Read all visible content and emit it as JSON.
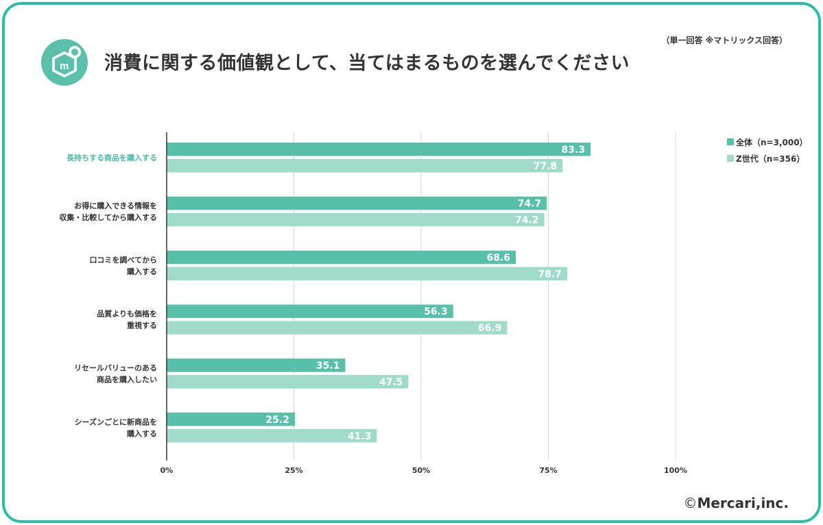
{
  "title": "消費に関する価値観として、当てはまるものを選んでください",
  "note": "（単一回答 ※マトリックス回答）",
  "copyright": "Mercari,inc.",
  "logo_icon": "mercari-logo-icon",
  "colors": {
    "frame": "#29bda6",
    "series1": "#58bfa8",
    "series2": "#9fdaca",
    "highlight_label": "#4cb9a1",
    "logo_bg": "#5bc0a9"
  },
  "chart_data": {
    "type": "bar",
    "orientation": "horizontal",
    "categories": [
      [
        "長持ちする商品を購入する"
      ],
      [
        "お得に購入できる情報を",
        "収集・比較してから購入する"
      ],
      [
        "口コミを調べてから",
        "購入する"
      ],
      [
        "品質よりも価格を",
        "重視する"
      ],
      [
        "リセールバリューのある",
        "商品を購入したい"
      ],
      [
        "シーズンごとに新商品を",
        "購入する"
      ]
    ],
    "highlight_category_index": 0,
    "series": [
      {
        "name": "全体（n=3,000）",
        "values": [
          83.3,
          74.7,
          68.6,
          56.3,
          35.1,
          25.2
        ]
      },
      {
        "name": "Z世代（n=356）",
        "values": [
          77.8,
          74.2,
          78.7,
          66.9,
          47.5,
          41.3
        ]
      }
    ],
    "xlim": [
      0,
      100
    ],
    "xticks": [
      0,
      25,
      50,
      75,
      100
    ],
    "xtick_labels": [
      "0%",
      "25%",
      "50%",
      "75%",
      "100%"
    ],
    "grid": true,
    "legend_position": "top-right"
  }
}
